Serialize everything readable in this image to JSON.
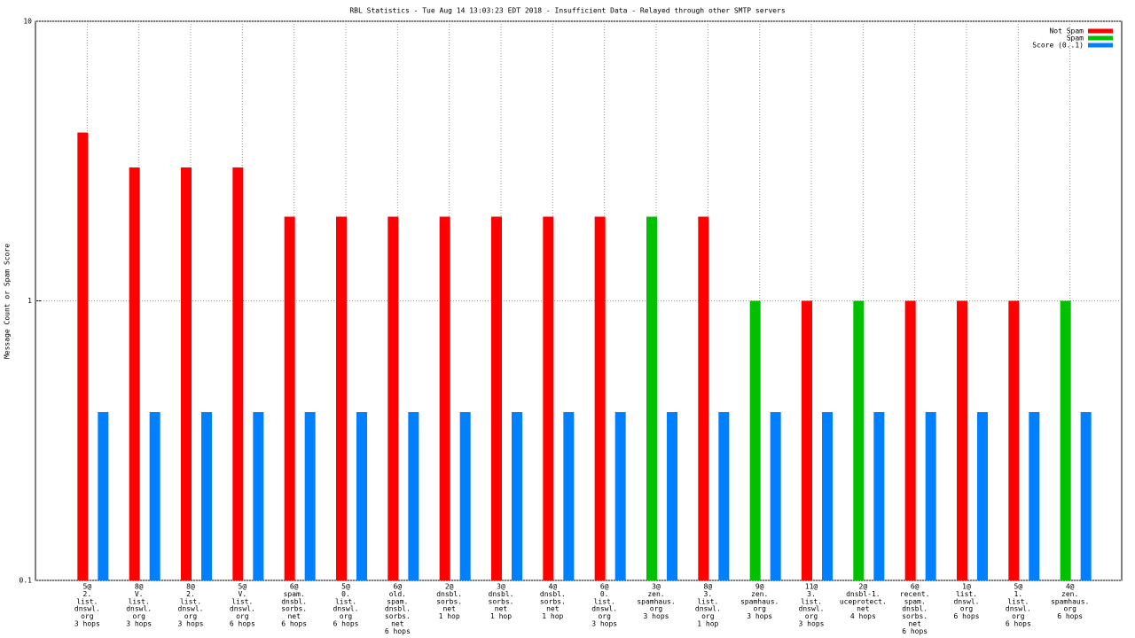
{
  "chart_data": {
    "type": "bar",
    "title": "RBL Statistics - Tue Aug 14 13:03:23 EDT 2018 - Insufficient Data - Relayed through other SMTP servers",
    "ylabel": "Message Count or Spam Score",
    "categories": [
      [
        "5@",
        "2.",
        "list.",
        "dnswl.",
        "org",
        "3 hops"
      ],
      [
        "8@",
        "V.",
        "list.",
        "dnswl.",
        "org",
        "3 hops"
      ],
      [
        "8@",
        "2.",
        "list.",
        "dnswl.",
        "org",
        "3 hops"
      ],
      [
        "5@",
        "V.",
        "list.",
        "dnswl.",
        "org",
        "6 hops"
      ],
      [
        "6@",
        "spam.",
        "dnsbl.",
        "sorbs.",
        "net",
        "6 hops"
      ],
      [
        "5@",
        "0.",
        "list.",
        "dnswl.",
        "org",
        "6 hops"
      ],
      [
        "6@",
        "old.",
        "spam.",
        "dnsbl.",
        "sorbs.",
        "net",
        "6 hops"
      ],
      [
        "2@",
        "dnsbl.",
        "sorbs.",
        "net",
        "1 hop"
      ],
      [
        "3@",
        "dnsbl.",
        "sorbs.",
        "net",
        "1 hop"
      ],
      [
        "4@",
        "dnsbl.",
        "sorbs.",
        "net",
        "1 hop"
      ],
      [
        "6@",
        "0.",
        "list.",
        "dnswl.",
        "org",
        "3 hops"
      ],
      [
        "3@",
        "zen.",
        "spamhaus.",
        "org",
        "3 hops"
      ],
      [
        "8@",
        "3.",
        "list.",
        "dnswl.",
        "org",
        "1 hop"
      ],
      [
        "9@",
        "zen.",
        "spamhaus.",
        "org",
        "3 hops"
      ],
      [
        "11@",
        "3.",
        "list.",
        "dnswl.",
        "org",
        "3 hops"
      ],
      [
        "2@",
        "dnsbl-1.",
        "uceprotect.",
        "net",
        "4 hops"
      ],
      [
        "6@",
        "recent.",
        "spam.",
        "dnsbl.",
        "sorbs.",
        "net",
        "6 hops"
      ],
      [
        "1@",
        "list.",
        "dnswl.",
        "org",
        "6 hops"
      ],
      [
        "5@",
        "1.",
        "list.",
        "dnswl.",
        "org",
        "6 hops"
      ],
      [
        "4@",
        "zen.",
        "spamhaus.",
        "org",
        "6 hops"
      ]
    ],
    "series": [
      {
        "name": "Not Spam",
        "color": "#ff0000",
        "values": [
          4,
          3,
          3,
          3,
          2,
          2,
          2,
          2,
          2,
          2,
          2,
          null,
          2,
          null,
          1,
          null,
          1,
          1,
          1,
          null
        ]
      },
      {
        "name": "Spam",
        "color": "#00c000",
        "values": [
          null,
          null,
          null,
          null,
          null,
          null,
          null,
          null,
          null,
          null,
          null,
          2,
          null,
          1,
          null,
          1,
          null,
          null,
          null,
          1
        ]
      },
      {
        "name": "Score (0..1)",
        "color": "#0080ff",
        "values": [
          0.4,
          0.4,
          0.4,
          0.4,
          0.4,
          0.4,
          0.4,
          0.4,
          0.4,
          0.4,
          0.4,
          0.4,
          0.4,
          0.4,
          0.4,
          0.4,
          0.4,
          0.4,
          0.4,
          0.4
        ]
      }
    ],
    "ylim": [
      0.1,
      10
    ],
    "yticks": [
      0.1,
      1,
      10
    ],
    "log_scale": true,
    "grid": true,
    "legend": "top-right"
  }
}
